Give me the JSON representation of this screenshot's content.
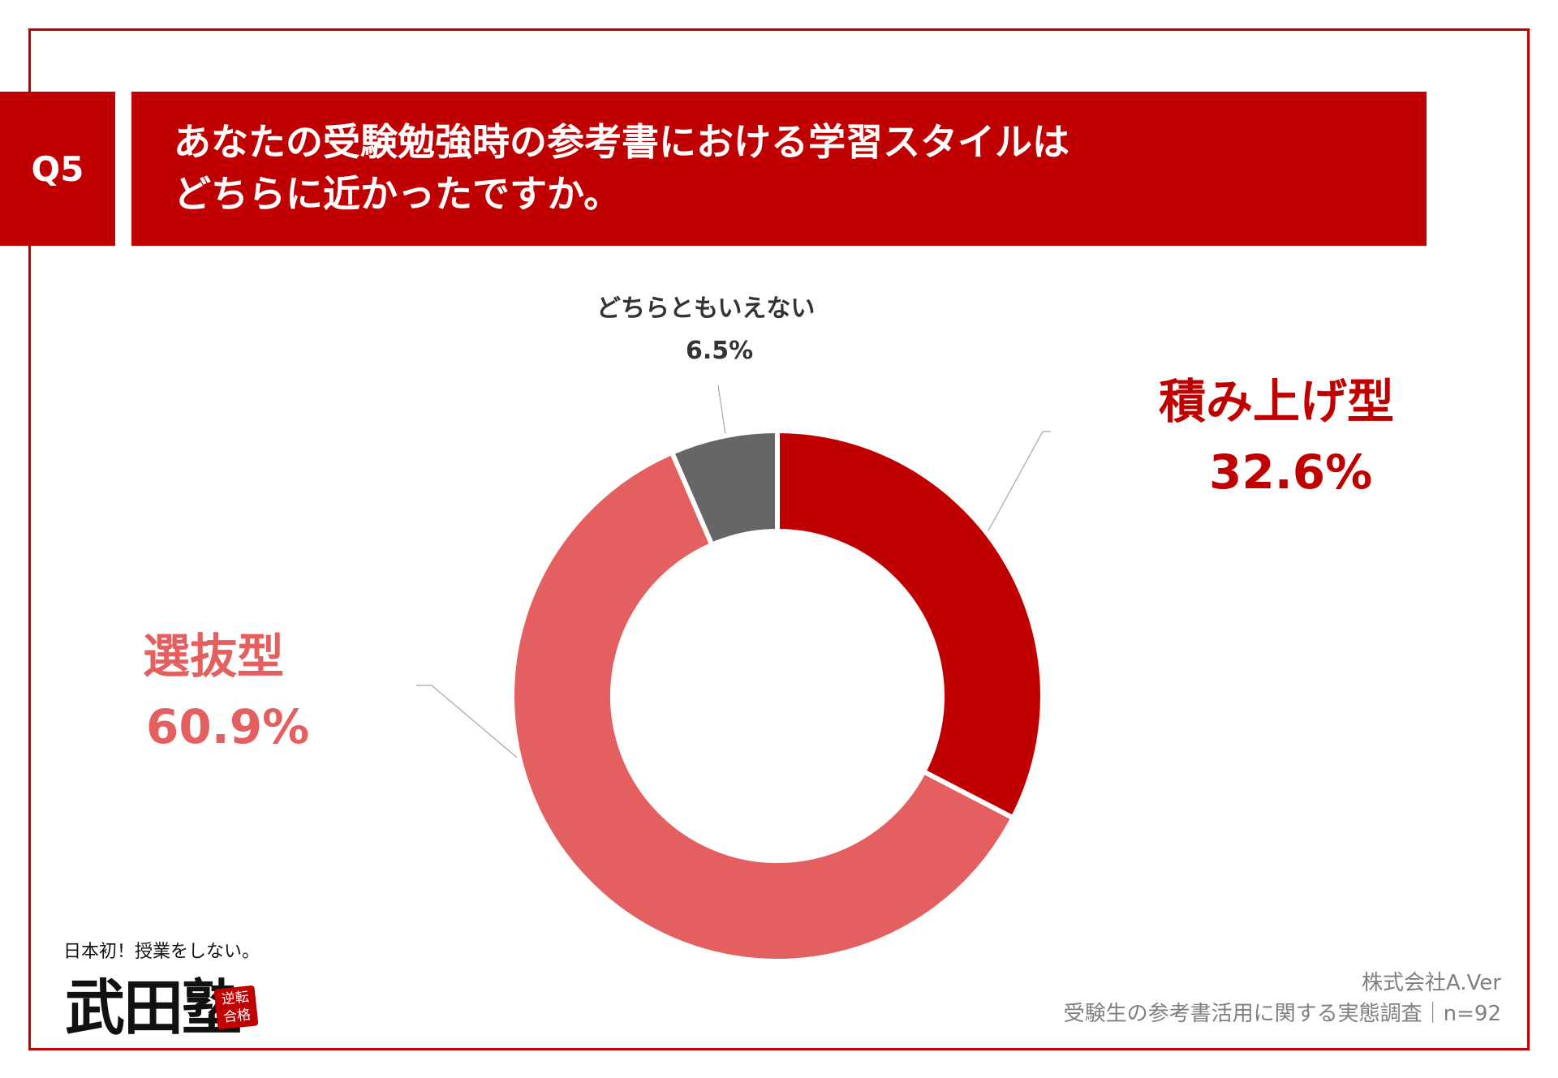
{
  "question": {
    "number": "Q5",
    "line1": "あなたの受験勉強時の参考書における学習スタイルは",
    "line2": "どちらに近かったですか。"
  },
  "chart_data": {
    "type": "pie",
    "style": "donut",
    "categories": [
      "積み上げ型",
      "選抜型",
      "どちらともいえない"
    ],
    "values": [
      32.6,
      60.9,
      6.5
    ],
    "labels": [
      "32.6%",
      "60.9%",
      "6.5%"
    ],
    "colors": [
      "#c00000",
      "#e46060",
      "#666666"
    ],
    "title": ""
  },
  "footer": {
    "company": "株式会社A.Ver",
    "survey": "受験生の参考書活用に関する実態調査｜n=92"
  },
  "logo": {
    "tagline": "日本初！授業をしない。",
    "name": "武田塾",
    "stamp": "逆転合格"
  }
}
